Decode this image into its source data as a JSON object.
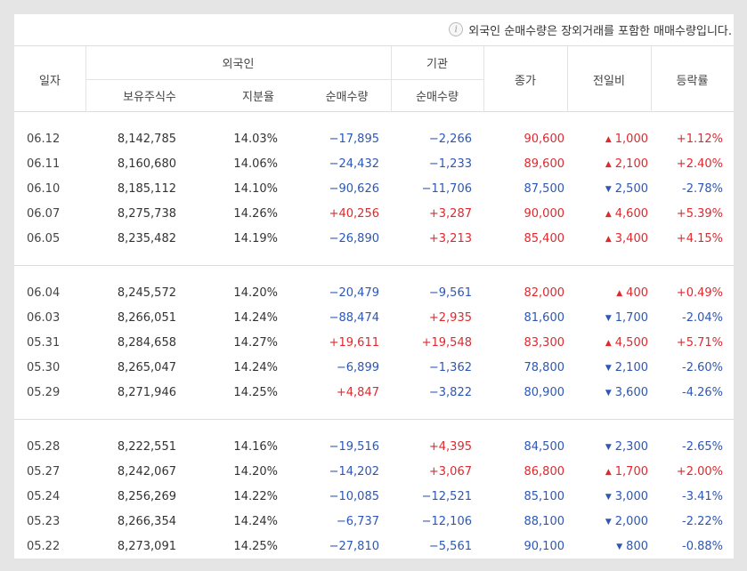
{
  "notice": {
    "icon": "info-icon",
    "text": "외국인 순매수량은 장외거래를 포함한 매매수량입니다."
  },
  "header": {
    "date": "일자",
    "foreign": "외국인",
    "institution": "기관",
    "close": "종가",
    "change": "전일비",
    "rate": "등락률",
    "holdings": "보유주식수",
    "ratio": "지분율",
    "foreign_net": "순매수량",
    "inst_net": "순매수량"
  },
  "colors": {
    "up": "#e0282d",
    "down": "#2c57b5"
  },
  "groups": [
    [
      {
        "date": "06.12",
        "holdings": "8,142,785",
        "ratio": "14.03%",
        "foreign_net": "−17,895",
        "inst_net": "−2,266",
        "close": "90,600",
        "close_dir": "up",
        "change": "1,000",
        "change_dir": "up",
        "rate": "+1.12%"
      },
      {
        "date": "06.11",
        "holdings": "8,160,680",
        "ratio": "14.06%",
        "foreign_net": "−24,432",
        "inst_net": "−1,233",
        "close": "89,600",
        "close_dir": "up",
        "change": "2,100",
        "change_dir": "up",
        "rate": "+2.40%"
      },
      {
        "date": "06.10",
        "holdings": "8,185,112",
        "ratio": "14.10%",
        "foreign_net": "−90,626",
        "inst_net": "−11,706",
        "close": "87,500",
        "close_dir": "down",
        "change": "2,500",
        "change_dir": "down",
        "rate": "-2.78%"
      },
      {
        "date": "06.07",
        "holdings": "8,275,738",
        "ratio": "14.26%",
        "foreign_net": "+40,256",
        "inst_net": "+3,287",
        "close": "90,000",
        "close_dir": "up",
        "change": "4,600",
        "change_dir": "up",
        "rate": "+5.39%"
      },
      {
        "date": "06.05",
        "holdings": "8,235,482",
        "ratio": "14.19%",
        "foreign_net": "−26,890",
        "inst_net": "+3,213",
        "close": "85,400",
        "close_dir": "up",
        "change": "3,400",
        "change_dir": "up",
        "rate": "+4.15%"
      }
    ],
    [
      {
        "date": "06.04",
        "holdings": "8,245,572",
        "ratio": "14.20%",
        "foreign_net": "−20,479",
        "inst_net": "−9,561",
        "close": "82,000",
        "close_dir": "up",
        "change": "400",
        "change_dir": "up",
        "rate": "+0.49%"
      },
      {
        "date": "06.03",
        "holdings": "8,266,051",
        "ratio": "14.24%",
        "foreign_net": "−88,474",
        "inst_net": "+2,935",
        "close": "81,600",
        "close_dir": "down",
        "change": "1,700",
        "change_dir": "down",
        "rate": "-2.04%"
      },
      {
        "date": "05.31",
        "holdings": "8,284,658",
        "ratio": "14.27%",
        "foreign_net": "+19,611",
        "inst_net": "+19,548",
        "close": "83,300",
        "close_dir": "up",
        "change": "4,500",
        "change_dir": "up",
        "rate": "+5.71%"
      },
      {
        "date": "05.30",
        "holdings": "8,265,047",
        "ratio": "14.24%",
        "foreign_net": "−6,899",
        "inst_net": "−1,362",
        "close": "78,800",
        "close_dir": "down",
        "change": "2,100",
        "change_dir": "down",
        "rate": "-2.60%"
      },
      {
        "date": "05.29",
        "holdings": "8,271,946",
        "ratio": "14.25%",
        "foreign_net": "+4,847",
        "inst_net": "−3,822",
        "close": "80,900",
        "close_dir": "down",
        "change": "3,600",
        "change_dir": "down",
        "rate": "-4.26%"
      }
    ],
    [
      {
        "date": "05.28",
        "holdings": "8,222,551",
        "ratio": "14.16%",
        "foreign_net": "−19,516",
        "inst_net": "+4,395",
        "close": "84,500",
        "close_dir": "down",
        "change": "2,300",
        "change_dir": "down",
        "rate": "-2.65%"
      },
      {
        "date": "05.27",
        "holdings": "8,242,067",
        "ratio": "14.20%",
        "foreign_net": "−14,202",
        "inst_net": "+3,067",
        "close": "86,800",
        "close_dir": "up",
        "change": "1,700",
        "change_dir": "up",
        "rate": "+2.00%"
      },
      {
        "date": "05.24",
        "holdings": "8,256,269",
        "ratio": "14.22%",
        "foreign_net": "−10,085",
        "inst_net": "−12,521",
        "close": "85,100",
        "close_dir": "down",
        "change": "3,000",
        "change_dir": "down",
        "rate": "-3.41%"
      },
      {
        "date": "05.23",
        "holdings": "8,266,354",
        "ratio": "14.24%",
        "foreign_net": "−6,737",
        "inst_net": "−12,106",
        "close": "88,100",
        "close_dir": "down",
        "change": "2,000",
        "change_dir": "down",
        "rate": "-2.22%"
      },
      {
        "date": "05.22",
        "holdings": "8,273,091",
        "ratio": "14.25%",
        "foreign_net": "−27,810",
        "inst_net": "−5,561",
        "close": "90,100",
        "close_dir": "down",
        "change": "800",
        "change_dir": "down",
        "rate": "-0.88%"
      }
    ]
  ]
}
